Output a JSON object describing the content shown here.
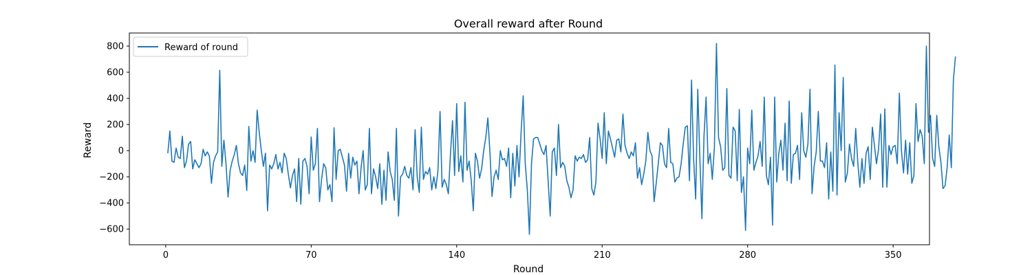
{
  "chart_data": {
    "type": "line",
    "title": "Overall reward after Round",
    "xlabel": "Round",
    "ylabel": "Reward",
    "xlim": [
      -17.5,
      367.5
    ],
    "ylim": [
      -720,
      900
    ],
    "xticks": [
      0,
      70,
      140,
      210,
      280,
      350
    ],
    "yticks": [
      -600,
      -400,
      -200,
      0,
      200,
      400,
      600,
      800
    ],
    "grid": false,
    "legend_position": "top-left",
    "colors": {
      "series": "#1f77b4"
    },
    "series": [
      {
        "name": "Reward of round",
        "x_start": 1,
        "x_step": 1,
        "values": [
          -20,
          150,
          -80,
          -90,
          20,
          -50,
          -60,
          110,
          -130,
          -80,
          50,
          70,
          -140,
          -70,
          -100,
          -130,
          -100,
          10,
          -40,
          -10,
          -40,
          -250,
          -90,
          -40,
          -10,
          615,
          -120,
          80,
          -100,
          -355,
          -150,
          -80,
          -30,
          40,
          -100,
          -170,
          -190,
          -110,
          -305,
          185,
          -80,
          0,
          -90,
          310,
          140,
          0,
          -120,
          -20,
          -460,
          -110,
          -140,
          -100,
          -30,
          -140,
          -90,
          -170,
          -20,
          -60,
          -180,
          -285,
          -190,
          -140,
          -390,
          -60,
          -410,
          -80,
          -60,
          -120,
          -330,
          105,
          -150,
          -100,
          170,
          -390,
          -220,
          -100,
          -130,
          -300,
          -260,
          -390,
          175,
          -220,
          0,
          10,
          -50,
          -110,
          -310,
          -20,
          -210,
          -50,
          -110,
          -80,
          -330,
          -130,
          0,
          -300,
          -260,
          170,
          -330,
          -140,
          -200,
          -290,
          -100,
          -410,
          -150,
          -380,
          -10,
          -160,
          -220,
          -380,
          170,
          -500,
          -200,
          -180,
          -120,
          -190,
          -210,
          -130,
          -300,
          160,
          -200,
          -320,
          180,
          -220,
          -160,
          -180,
          -130,
          -300,
          -200,
          -290,
          -150,
          300,
          -280,
          -220,
          -260,
          -330,
          -30,
          230,
          -190,
          360,
          -160,
          -40,
          -240,
          370,
          -150,
          -80,
          -230,
          -460,
          -20,
          -80,
          -210,
          -140,
          0,
          100,
          250,
          -10,
          -350,
          -200,
          -150,
          -220,
          0,
          -70,
          -60,
          -120,
          20,
          -360,
          -20,
          -270,
          40,
          -200,
          140,
          420,
          -100,
          -300,
          -640,
          -100,
          90,
          100,
          100,
          50,
          0,
          -30,
          40,
          -230,
          -500,
          -10,
          20,
          -190,
          200,
          -130,
          -90,
          -120,
          -230,
          -280,
          -360,
          -300,
          -40,
          -80,
          -50,
          -60,
          -30,
          -90,
          -70,
          100,
          -290,
          -340,
          -240,
          210,
          90,
          -60,
          290,
          -100,
          150,
          90,
          20,
          -50,
          80,
          90,
          -10,
          280,
          40,
          -20,
          -60,
          -10,
          -40,
          60,
          -210,
          -130,
          -260,
          -180,
          -80,
          140,
          0,
          -40,
          -390,
          -250,
          -100,
          60,
          40,
          -100,
          -130,
          170,
          -90,
          -100,
          -240,
          -210,
          -200,
          -100,
          50,
          180,
          190,
          -230,
          540,
          -60,
          -370,
          470,
          -50,
          -520,
          110,
          410,
          -100,
          -20,
          -220,
          20,
          820,
          100,
          30,
          -150,
          -130,
          475,
          -190,
          -210,
          180,
          150,
          -230,
          315,
          -320,
          -200,
          -610,
          20,
          -100,
          310,
          -150,
          -90,
          -40,
          70,
          -120,
          410,
          -190,
          -260,
          -50,
          -570,
          410,
          -240,
          -20,
          80,
          -150,
          210,
          -230,
          380,
          -250,
          -30,
          -20,
          40,
          -220,
          290,
          0,
          -50,
          50,
          470,
          -330,
          -120,
          -10,
          300,
          -80,
          -80,
          -130,
          60,
          -370,
          -10,
          -310,
          655,
          -340,
          290,
          0,
          560,
          -240,
          -170,
          50,
          -60,
          -120,
          170,
          -90,
          -280,
          -60,
          -250,
          -20,
          30,
          -220,
          180,
          40,
          -100,
          10,
          280,
          -280,
          320,
          -280,
          40,
          -30,
          30,
          40,
          -100,
          440,
          0,
          -170,
          80,
          -180,
          60,
          -250,
          -190,
          360,
          70,
          160,
          110,
          -100,
          800,
          140,
          270,
          -60,
          -120,
          270,
          30,
          -90,
          -290,
          -270,
          -130,
          120,
          -130,
          540,
          720
        ]
      }
    ]
  }
}
